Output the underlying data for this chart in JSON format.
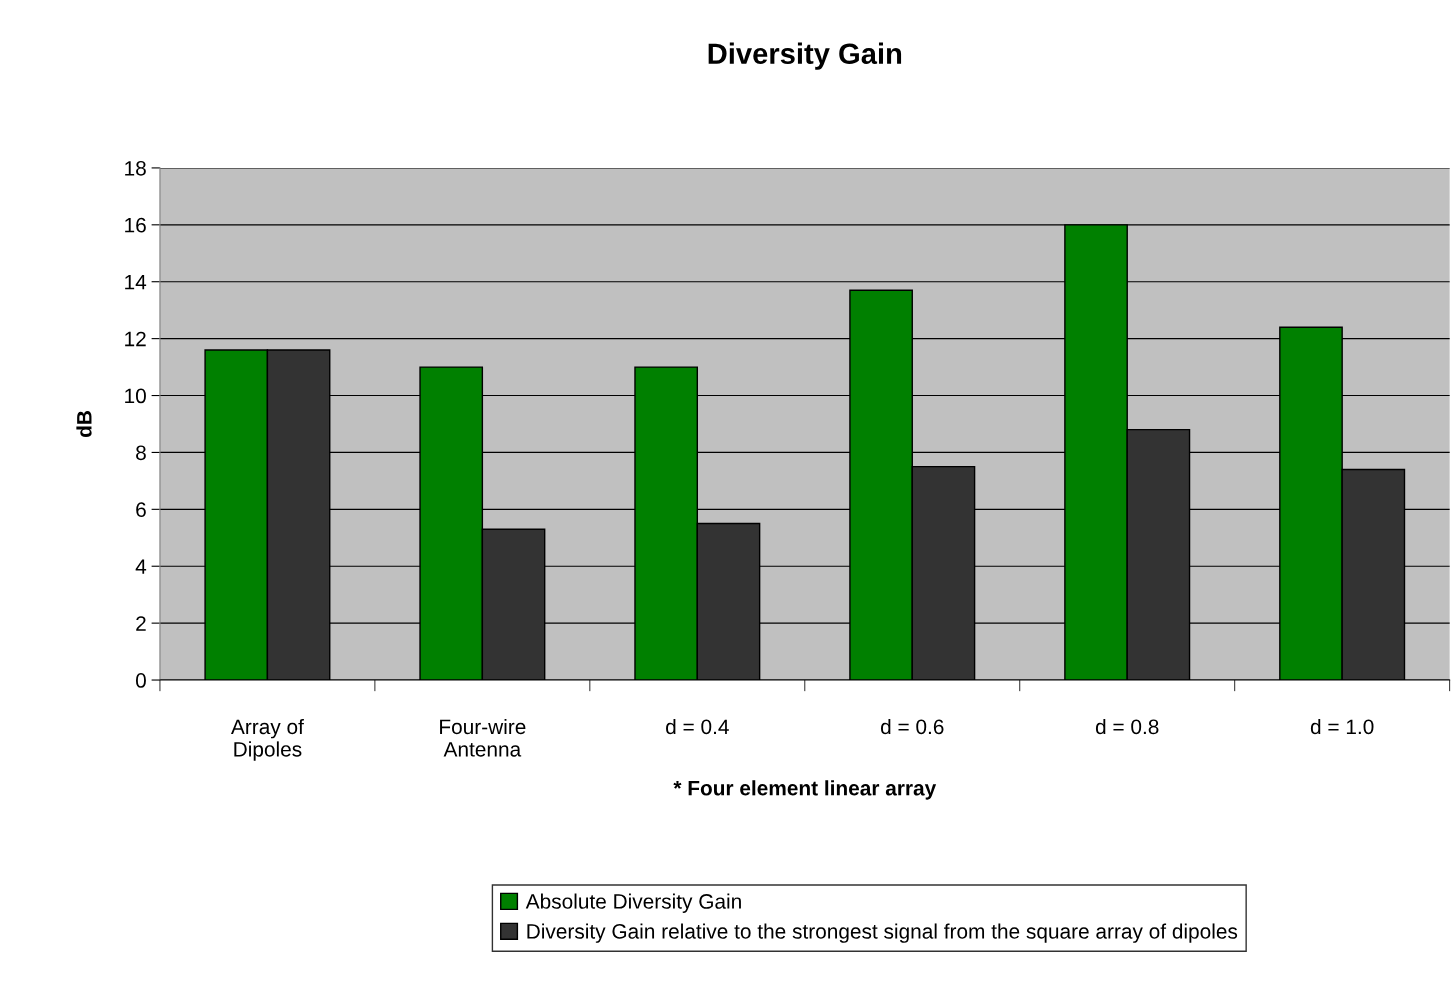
{
  "chart_data": {
    "type": "bar",
    "title": "Diversity Gain",
    "xlabel": "* Four element linear array",
    "ylabel": "dB",
    "categories": [
      "Array of\nDipoles",
      "Four-wire\nAntenna",
      "d = 0.4",
      "d = 0.6",
      "d = 0.8",
      "d = 1.0"
    ],
    "series": [
      {
        "name": "Absolute Diversity Gain",
        "color": "#008000",
        "values": [
          11.6,
          11.0,
          11.0,
          13.7,
          16.0,
          12.4
        ]
      },
      {
        "name": "Diversity Gain relative to the strongest signal from the square array of dipoles",
        "color": "#333333",
        "values": [
          11.6,
          5.3,
          5.5,
          7.5,
          8.8,
          7.4
        ]
      }
    ],
    "ylim": [
      0,
      18
    ],
    "yticks": [
      0,
      2,
      4,
      6,
      8,
      10,
      12,
      14,
      16,
      18
    ],
    "grid": "y",
    "legend": "bottom"
  }
}
